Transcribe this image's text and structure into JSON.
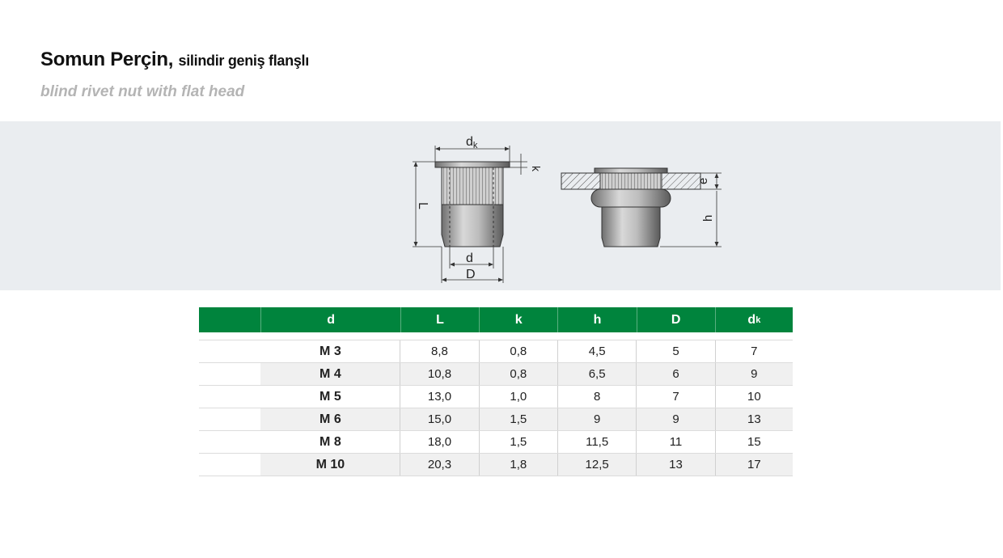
{
  "title": {
    "main": "Somun Perçin,",
    "sub": "silindir geniş flanşlı"
  },
  "subtitle": "blind rivet nut with flat head",
  "diagram": {
    "labels": {
      "dk_main": "d",
      "dk_sub": "k",
      "k": "k",
      "L": "L",
      "d": "d",
      "D": "D",
      "e": "e",
      "h": "h"
    }
  },
  "table": {
    "headers": [
      "d",
      "L",
      "k",
      "h",
      "D"
    ],
    "header_dk": {
      "main": "d",
      "sub": "k"
    },
    "rows": [
      [
        "M  3",
        "8,8",
        "0,8",
        "4,5",
        "5",
        "7"
      ],
      [
        "M  4",
        "10,8",
        "0,8",
        "6,5",
        "6",
        "9"
      ],
      [
        "M  5",
        "13,0",
        "1,0",
        "8",
        "7",
        "10"
      ],
      [
        "M  6",
        "15,0",
        "1,5",
        "9",
        "9",
        "13"
      ],
      [
        "M  8",
        "18,0",
        "1,5",
        "11,5",
        "11",
        "15"
      ],
      [
        "M 10",
        "20,3",
        "1,8",
        "12,5",
        "13",
        "17"
      ]
    ]
  },
  "colors": {
    "header_green": "#00843d",
    "band": "#eaedf0",
    "subtitle_gray": "#b4b4b4"
  }
}
